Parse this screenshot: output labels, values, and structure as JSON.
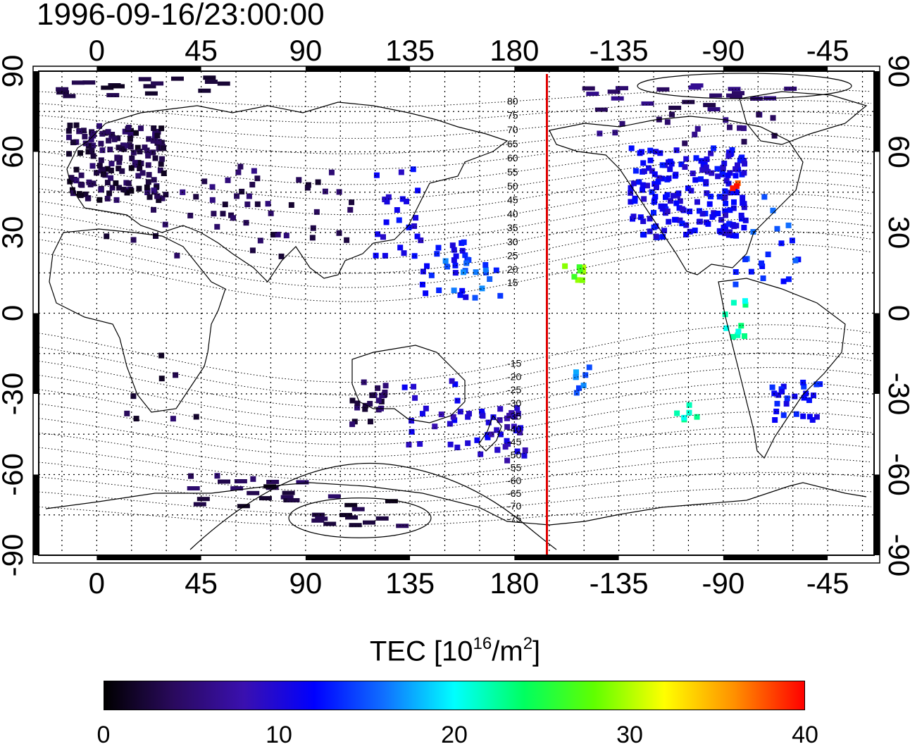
{
  "title": "1996-09-16/23:00:00",
  "map": {
    "lon_start": -25,
    "lon_end": 335,
    "lat_range": [
      -90,
      90
    ],
    "grid": true,
    "top_lon_labels": [
      "0",
      "45",
      "90",
      "135",
      "180",
      "-135",
      "-90",
      "-45"
    ],
    "bottom_lon_labels": [
      "0",
      "45",
      "90",
      "135",
      "180",
      "-135",
      "-90",
      "-45"
    ],
    "lat_labels": [
      "90",
      "60",
      "30",
      "0",
      "-30",
      "-60",
      "-90"
    ],
    "terminator_line": {
      "lon": 194,
      "color": "#e00000"
    },
    "contour_labels": [
      "80",
      "75",
      "70",
      "65",
      "60",
      "55",
      "50",
      "45",
      "40",
      "35",
      "30",
      "25",
      "20",
      "15",
      "-15",
      "-20",
      "-25",
      "-30",
      "-35",
      "-40",
      "-45",
      "-50",
      "-55",
      "-60",
      "-65",
      "-70",
      "-75"
    ]
  },
  "colorbar": {
    "label_main": "TEC  [10",
    "label_exp1": "16",
    "label_unit": "/m",
    "label_exp2": "2",
    "label_end": "]",
    "min": 0,
    "max": 40,
    "ticks": [
      "0",
      "10",
      "20",
      "30",
      "40"
    ],
    "colors": [
      "#000000",
      "#2a0a5e",
      "#3a10b0",
      "#0000ff",
      "#1070ff",
      "#00ffff",
      "#00ff60",
      "#60ff00",
      "#ffff00",
      "#ff9000",
      "#ff0000"
    ]
  },
  "chart_data": {
    "type": "scatter",
    "title": "1996-09-16/23:00:00",
    "value_label": "TEC  [10^16/m^2]",
    "value_range": [
      0,
      40
    ],
    "regions": [
      {
        "lon": [
          -12,
          30
        ],
        "lat": [
          42,
          70
        ],
        "tec": 3,
        "count": 160
      },
      {
        "lon": [
          -25,
          60
        ],
        "lat": [
          80,
          89
        ],
        "tec": 3,
        "count": 18
      },
      {
        "lon": [
          0,
          80
        ],
        "lat": [
          20,
          50
        ],
        "tec": 4,
        "count": 30
      },
      {
        "lon": [
          60,
          110
        ],
        "lat": [
          25,
          55
        ],
        "tec": 4,
        "count": 25
      },
      {
        "lon": [
          40,
          90
        ],
        "lat": [
          -72,
          -60
        ],
        "tec": 3,
        "count": 20
      },
      {
        "lon": [
          95,
          135
        ],
        "lat": [
          -80,
          -68
        ],
        "tec": 3,
        "count": 14
      },
      {
        "lon": [
          10,
          45
        ],
        "lat": [
          -40,
          -15
        ],
        "tec": 3,
        "count": 8
      },
      {
        "lon": [
          110,
          125
        ],
        "lat": [
          -42,
          -25
        ],
        "tec": 4,
        "count": 22
      },
      {
        "lon": [
          120,
          140
        ],
        "lat": [
          20,
          55
        ],
        "tec": 11,
        "count": 24
      },
      {
        "lon": [
          140,
          160
        ],
        "lat": [
          5,
          30
        ],
        "tec": 12,
        "count": 22
      },
      {
        "lon": [
          150,
          175
        ],
        "lat": [
          5,
          20
        ],
        "tec": 15,
        "count": 16
      },
      {
        "lon": [
          130,
          175
        ],
        "lat": [
          -50,
          -25
        ],
        "tec": 10,
        "count": 30
      },
      {
        "lon": [
          165,
          185
        ],
        "lat": [
          -55,
          -35
        ],
        "tec": 9,
        "count": 28
      },
      {
        "lon": [
          -130,
          -80
        ],
        "lat": [
          28,
          62
        ],
        "tec": 11,
        "count": 190
      },
      {
        "lon": [
          -150,
          -60
        ],
        "lat": [
          62,
          85
        ],
        "tec": 5,
        "count": 40
      },
      {
        "lon": [
          -90,
          -55
        ],
        "lat": [
          10,
          45
        ],
        "tec": 14,
        "count": 20
      },
      {
        "lon": [
          -90,
          -80
        ],
        "lat": [
          -10,
          5
        ],
        "tec": 22,
        "count": 10
      },
      {
        "lon": [
          -70,
          -45
        ],
        "lat": [
          -40,
          -25
        ],
        "tec": 12,
        "count": 26
      },
      {
        "lon": [
          -160,
          -150
        ],
        "lat": [
          10,
          25
        ],
        "tec": 28,
        "count": 8
      },
      {
        "lon": [
          -155,
          -145
        ],
        "lat": [
          -30,
          -20
        ],
        "tec": 16,
        "count": 8
      },
      {
        "lon": [
          -110,
          -100
        ],
        "lat": [
          -40,
          -30
        ],
        "tec": 22,
        "count": 6
      },
      {
        "lon": [
          -87,
          -82
        ],
        "lat": [
          46,
          49
        ],
        "tec": 38,
        "count": 3
      }
    ]
  }
}
